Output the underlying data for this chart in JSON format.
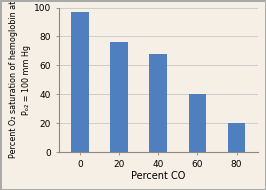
{
  "categories": [
    0,
    20,
    40,
    60,
    80
  ],
  "values": [
    97,
    76,
    68,
    40,
    20
  ],
  "bar_color": "#4f7fbf",
  "background_color": "#F5EFE6",
  "plot_background": "#F5EFE6",
  "xlabel": "Percent CO",
  "ylabel_line1": "Percent O₂ saturation of hemoglobin at",
  "ylabel_line2": "Pₒ₂ = 100 mm Hg",
  "ylim": [
    0,
    100
  ],
  "yticks": [
    0,
    20,
    40,
    60,
    80,
    100
  ],
  "xtick_labels": [
    "0",
    "20",
    "40",
    "60",
    "80"
  ],
  "bar_width": 0.45,
  "grid_color": "#C8C8C8",
  "border_color": "#888888",
  "outer_border_color": "#999999",
  "xlabel_fontsize": 7.0,
  "ylabel_fontsize": 5.8,
  "tick_fontsize": 6.5,
  "fig_border_color": "#AAAAAA"
}
